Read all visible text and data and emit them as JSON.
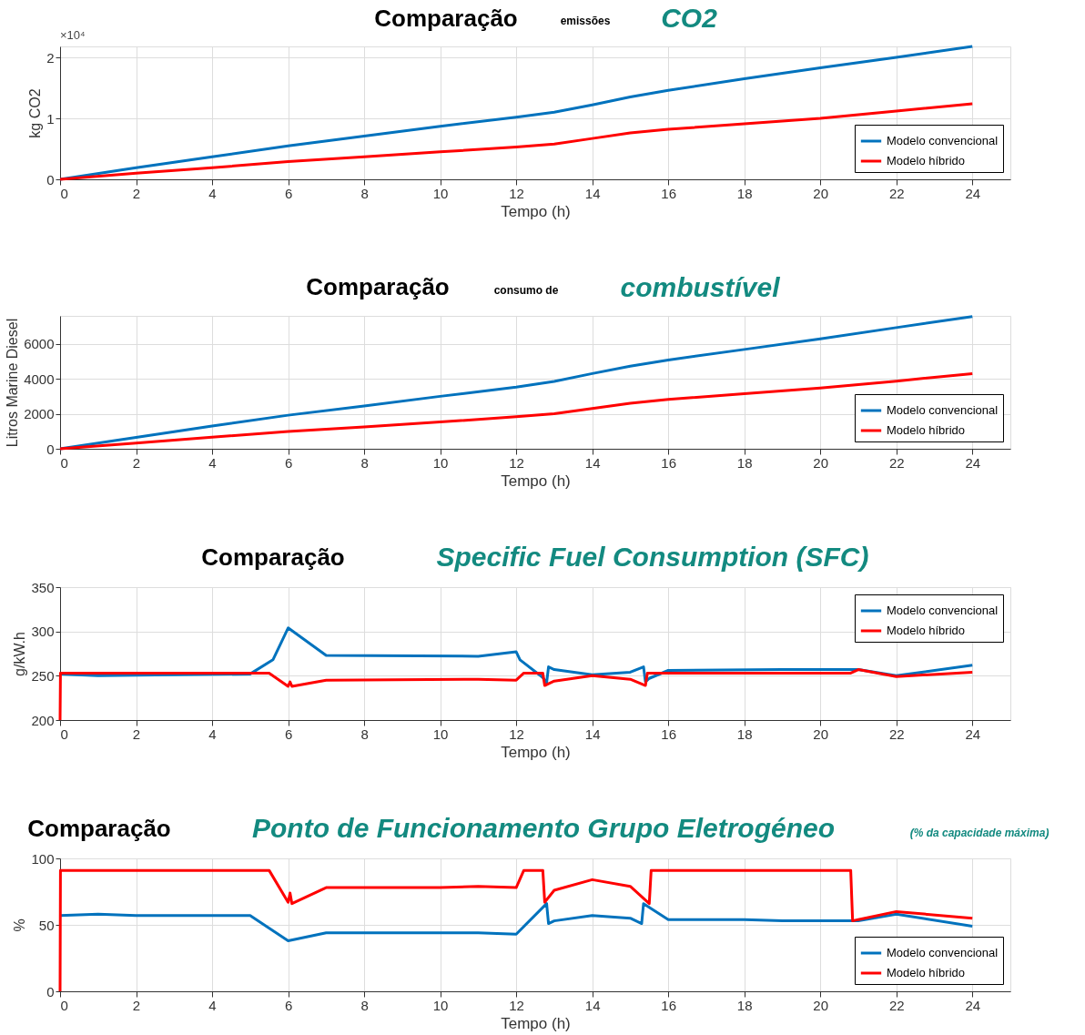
{
  "chart_data": [
    {
      "type": "line",
      "title": "Comparação",
      "annotations": [
        "emissões",
        "CO2",
        "×10⁴"
      ],
      "xlabel": "Tempo (h)",
      "ylabel": "kg CO2",
      "xlim": [
        0,
        25
      ],
      "xticks": [
        0,
        2,
        4,
        6,
        8,
        10,
        12,
        14,
        16,
        18,
        20,
        22,
        24
      ],
      "ylim": [
        0,
        2.18
      ],
      "yticks": [
        0,
        1,
        2
      ],
      "grid": true,
      "legend": "bottom right",
      "series": [
        {
          "name": "Modelo convencional",
          "color": "#0072bd",
          "x": [
            0,
            2,
            4,
            6,
            8,
            10,
            12,
            13,
            14,
            15,
            16,
            18,
            20,
            22,
            24
          ],
          "values": [
            0,
            0.19,
            0.37,
            0.55,
            0.71,
            0.87,
            1.02,
            1.1,
            1.22,
            1.35,
            1.46,
            1.65,
            1.83,
            2.0,
            2.18
          ]
        },
        {
          "name": "Modelo híbrido",
          "color": "#ff0000",
          "x": [
            0,
            2,
            4,
            6,
            8,
            10,
            12,
            13,
            14,
            15,
            16,
            18,
            20,
            22,
            24
          ],
          "values": [
            0,
            0.1,
            0.19,
            0.29,
            0.37,
            0.45,
            0.53,
            0.58,
            0.67,
            0.76,
            0.82,
            0.91,
            1.0,
            1.12,
            1.24
          ]
        }
      ]
    },
    {
      "type": "line",
      "title": "Comparação",
      "annotations": [
        "consumo de",
        "combustível"
      ],
      "xlabel": "Tempo (h)",
      "ylabel": "Litros Marine Diesel",
      "xlim": [
        0,
        25
      ],
      "xticks": [
        0,
        2,
        4,
        6,
        8,
        10,
        12,
        14,
        16,
        18,
        20,
        22,
        24
      ],
      "ylim": [
        0,
        7600
      ],
      "yticks": [
        0,
        2000,
        4000,
        6000
      ],
      "grid": true,
      "legend": "bottom right",
      "series": [
        {
          "name": "Modelo convencional",
          "color": "#0072bd",
          "x": [
            0,
            2,
            4,
            6,
            8,
            10,
            12,
            13,
            14,
            15,
            16,
            18,
            20,
            22,
            24
          ],
          "values": [
            0,
            650,
            1300,
            1920,
            2450,
            3000,
            3530,
            3850,
            4300,
            4720,
            5080,
            5680,
            6280,
            6930,
            7560
          ]
        },
        {
          "name": "Modelo híbrido",
          "color": "#ff0000",
          "x": [
            0,
            2,
            4,
            6,
            8,
            10,
            12,
            13,
            14,
            15,
            16,
            18,
            20,
            22,
            24
          ],
          "values": [
            0,
            330,
            660,
            990,
            1250,
            1530,
            1830,
            2000,
            2300,
            2600,
            2820,
            3150,
            3480,
            3870,
            4300
          ]
        }
      ]
    },
    {
      "type": "line",
      "title": "Comparação",
      "annotations": [
        "Specific Fuel Consumption (SFC)"
      ],
      "xlabel": "Tempo (h)",
      "ylabel": "g/kW.h",
      "xlim": [
        0,
        25
      ],
      "xticks": [
        0,
        2,
        4,
        6,
        8,
        10,
        12,
        14,
        16,
        18,
        20,
        22,
        24
      ],
      "ylim": [
        200,
        350
      ],
      "yticks": [
        200,
        250,
        300,
        350
      ],
      "grid": true,
      "legend": "top right",
      "series": [
        {
          "name": "Modelo convencional",
          "color": "#0072bd",
          "x": [
            0,
            1,
            5,
            5.6,
            6,
            7,
            11,
            12,
            12.1,
            12.7,
            12.8,
            12.85,
            13,
            14,
            15,
            15.35,
            15.4,
            15.5,
            16,
            19,
            21,
            22,
            24
          ],
          "values": [
            252,
            250,
            252,
            268,
            304,
            273,
            272,
            277,
            268,
            248,
            242,
            260,
            257,
            251,
            254,
            260,
            243,
            247,
            256,
            257,
            257,
            250,
            262
          ]
        },
        {
          "name": "Modelo híbrido",
          "color": "#ff0000",
          "x": [
            0,
            0.01,
            5.5,
            6,
            6.05,
            6.1,
            7,
            11,
            12,
            12.2,
            12.7,
            12.75,
            13,
            14,
            15,
            15.4,
            15.45,
            20.8,
            21,
            22,
            24
          ],
          "values": [
            200,
            253,
            253,
            238,
            243,
            238,
            245,
            246,
            245,
            253,
            253,
            239,
            244,
            250,
            246,
            239,
            253,
            253,
            257,
            249,
            254
          ]
        }
      ]
    },
    {
      "type": "line",
      "title": "Comparação",
      "annotations": [
        "Ponto de Funcionamento Grupo Eletrogéneo",
        "(% da capacidade máxima)"
      ],
      "xlabel": "Tempo (h)",
      "ylabel": "%",
      "xlim": [
        0,
        25
      ],
      "xticks": [
        0,
        2,
        4,
        6,
        8,
        10,
        12,
        14,
        16,
        18,
        20,
        22,
        24
      ],
      "ylim": [
        0,
        100
      ],
      "yticks": [
        0,
        50,
        100
      ],
      "grid": true,
      "legend": "bottom right",
      "series": [
        {
          "name": "Modelo convencional",
          "color": "#0072bd",
          "x": [
            0,
            1,
            2,
            5,
            6,
            7,
            11,
            12,
            12.8,
            12.85,
            13,
            14,
            15,
            15.3,
            15.35,
            16,
            18,
            19,
            21,
            22,
            24
          ],
          "values": [
            57,
            58,
            57,
            57,
            38,
            44,
            44,
            43,
            66,
            51,
            53,
            57,
            55,
            51,
            66,
            54,
            54,
            53,
            53,
            58,
            49
          ]
        },
        {
          "name": "Modelo híbrido",
          "color": "#ff0000",
          "x": [
            0,
            0.01,
            5.5,
            6,
            6.05,
            6.1,
            7,
            10,
            11,
            12,
            12.2,
            12.7,
            12.75,
            13,
            14,
            15,
            15.5,
            15.55,
            20.8,
            20.85,
            21,
            22,
            24
          ],
          "values": [
            0,
            91,
            91,
            67,
            74,
            66,
            78,
            78,
            79,
            78,
            91,
            91,
            67,
            76,
            84,
            79,
            66,
            91,
            91,
            53,
            54,
            60,
            55
          ]
        }
      ]
    }
  ]
}
